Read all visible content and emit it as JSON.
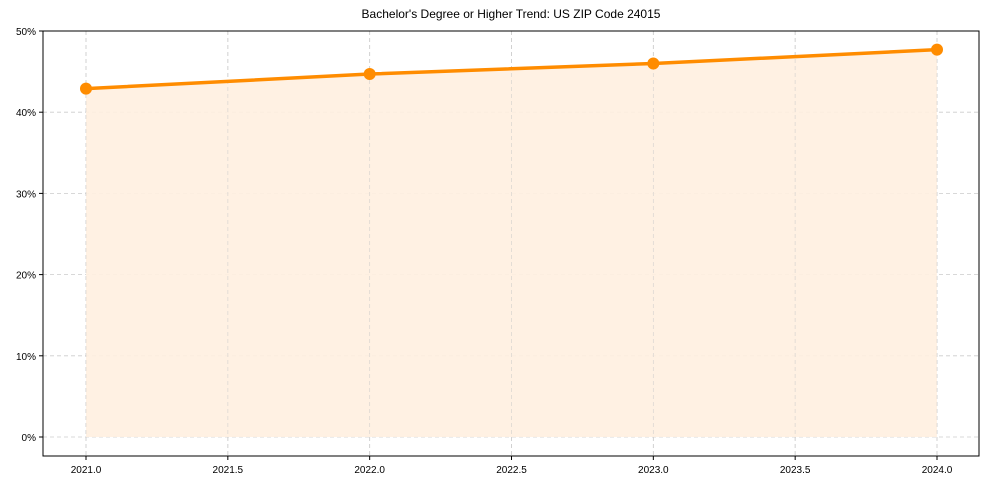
{
  "chart_data": {
    "type": "line",
    "title": "Bachelor's Degree or Higher Trend: US ZIP Code 24015",
    "xlabel": "",
    "ylabel": "",
    "x": [
      2021,
      2022,
      2023,
      2024
    ],
    "series": [
      {
        "name": "Bachelor's Degree or Higher",
        "values": [
          42.9,
          44.7,
          46.0,
          47.7
        ],
        "color": "#ff8c00",
        "fill": "#fff0e0"
      }
    ],
    "xlim": [
      2020.85,
      2024.15
    ],
    "ylim": [
      -2.3,
      50.0
    ],
    "xticks": [
      "2021.0",
      "2021.5",
      "2022.0",
      "2022.5",
      "2023.0",
      "2023.5",
      "2024.0"
    ],
    "yticks": [
      "0%",
      "10%",
      "20%",
      "30%",
      "40%",
      "50%"
    ],
    "grid": true,
    "legend": false
  }
}
